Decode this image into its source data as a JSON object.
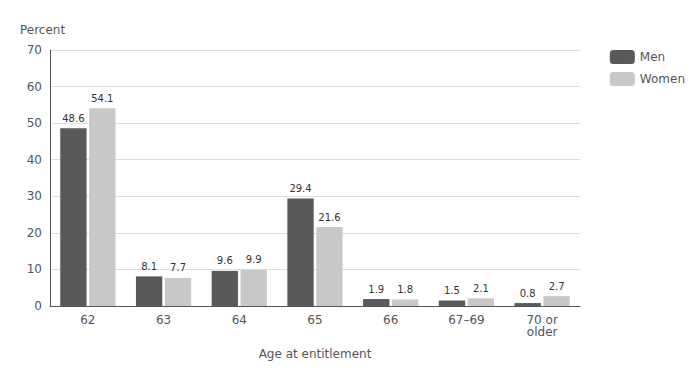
{
  "chart_data": {
    "type": "bar",
    "categories": [
      "62",
      "63",
      "64",
      "65",
      "66",
      "67–69",
      "70 or\nolder"
    ],
    "series": [
      {
        "name": "Men",
        "color": "#595959",
        "values": [
          48.6,
          8.1,
          9.6,
          29.4,
          1.9,
          1.5,
          0.8
        ]
      },
      {
        "name": "Women",
        "color": "#c8c8c8",
        "values": [
          54.1,
          7.7,
          9.9,
          21.6,
          1.8,
          2.1,
          2.7
        ]
      }
    ],
    "xlabel": "Age at entitlement",
    "ylabel": "Percent",
    "ylim": [
      0,
      70
    ],
    "yticks": [
      0,
      10,
      20,
      30,
      40,
      50,
      60,
      70
    ],
    "grid": true,
    "legend": "right",
    "data_labels": true
  }
}
